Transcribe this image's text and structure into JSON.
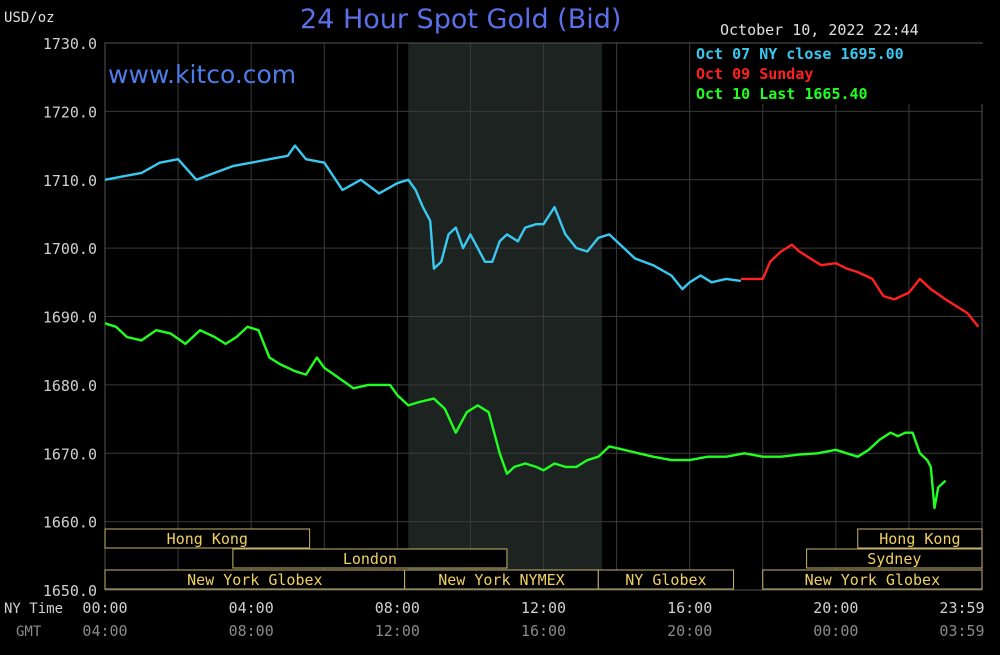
{
  "chart_data": {
    "type": "line",
    "title": "24 Hour Spot Gold (Bid)",
    "watermark": "www.kitco.com",
    "timestamp": "October 10, 2022 22:44",
    "yunit": "USD/oz",
    "ylim": [
      1650,
      1730
    ],
    "yticks": [
      "1730.0",
      "1720.0",
      "1710.0",
      "1700.0",
      "1690.0",
      "1680.0",
      "1670.0",
      "1660.0",
      "1650.0"
    ],
    "xlim": [
      0,
      24
    ],
    "xticks_ny": [
      "00:00",
      "04:00",
      "08:00",
      "12:00",
      "16:00",
      "20:00",
      "23:59"
    ],
    "xticks_gmt": [
      "04:00",
      "08:00",
      "12:00",
      "16:00",
      "20:00",
      "00:00",
      "03:59"
    ],
    "row_labels": {
      "ny": "NY Time",
      "gmt": "GMT"
    },
    "grid": true,
    "colors": {
      "background": "#000000",
      "grid": "#3a3a3a",
      "shade": "#1d2320",
      "market_border": "#c8b46e",
      "market_text": "#f0d060",
      "axis_text": "#d0d0d0",
      "gmt_text": "#8a8a8a"
    },
    "shaded_region": [
      8.3,
      13.6
    ],
    "markets": [
      {
        "label": "Hong Kong",
        "row": 0,
        "start": 0.0,
        "end": 5.6
      },
      {
        "label": "Hong Kong",
        "row": 0,
        "start": 20.6,
        "end": 24.0
      },
      {
        "label": "London",
        "row": 1,
        "start": 3.5,
        "end": 11.0
      },
      {
        "label": "Sydney",
        "row": 1,
        "start": 19.2,
        "end": 24.0
      },
      {
        "label": "New York Globex",
        "row": 2,
        "start": 0.0,
        "end": 8.2
      },
      {
        "label": "New York NYMEX",
        "row": 2,
        "start": 8.2,
        "end": 13.5
      },
      {
        "label": "NY Globex",
        "row": 2,
        "start": 13.5,
        "end": 17.2
      },
      {
        "label": "New York Globex",
        "row": 2,
        "start": 18.0,
        "end": 24.0
      }
    ],
    "legend": [
      {
        "label": "Oct 07 NY close 1695.00",
        "color": "#38c8f0"
      },
      {
        "label": "Oct 09 Sunday",
        "color": "#ff2020"
      },
      {
        "label": "Oct 10 Last 1665.40",
        "color": "#20ff20"
      }
    ],
    "series": [
      {
        "name": "Oct 07 NY close 1695.00",
        "color": "#38c8f0",
        "x": [
          0.0,
          0.5,
          1.0,
          1.5,
          2.0,
          2.5,
          3.0,
          3.5,
          4.0,
          4.5,
          5.0,
          5.2,
          5.5,
          6.0,
          6.5,
          7.0,
          7.5,
          8.0,
          8.3,
          8.5,
          8.7,
          8.9,
          9.0,
          9.2,
          9.4,
          9.6,
          9.8,
          10.0,
          10.2,
          10.4,
          10.6,
          10.8,
          11.0,
          11.3,
          11.5,
          11.8,
          12.0,
          12.3,
          12.6,
          12.9,
          13.2,
          13.5,
          13.8,
          14.0,
          14.5,
          15.0,
          15.5,
          15.8,
          16.0,
          16.3,
          16.6,
          17.0,
          17.4
        ],
        "values": [
          1710,
          1710.5,
          1711,
          1712.5,
          1713,
          1710,
          1711,
          1712,
          1712.5,
          1713,
          1713.5,
          1715,
          1713,
          1712.5,
          1708.5,
          1710,
          1708,
          1709.5,
          1710,
          1708.5,
          1706,
          1704,
          1697,
          1698,
          1702,
          1703,
          1700,
          1702,
          1700,
          1698,
          1698,
          1701,
          1702,
          1701,
          1703,
          1703.5,
          1703.5,
          1706,
          1702,
          1700,
          1699.5,
          1701.5,
          1702,
          1701,
          1698.5,
          1697.5,
          1696,
          1694,
          1695,
          1696,
          1695,
          1695.5,
          1695.2
        ]
      },
      {
        "name": "Oct 09 Sunday",
        "color": "#ff2020",
        "x": [
          17.4,
          17.8,
          18.0,
          18.2,
          18.5,
          18.8,
          19.0,
          19.3,
          19.6,
          20.0,
          20.3,
          20.6,
          21.0,
          21.3,
          21.6,
          22.0,
          22.3,
          22.6,
          23.0,
          23.3,
          23.6,
          23.9
        ],
        "values": [
          1695.5,
          1695.5,
          1695.5,
          1698,
          1699.5,
          1700.5,
          1699.5,
          1698.5,
          1697.5,
          1697.8,
          1697,
          1696.5,
          1695.5,
          1693,
          1692.5,
          1693.5,
          1695.5,
          1694,
          1692.5,
          1691.5,
          1690.5,
          1688.5
        ]
      },
      {
        "name": "Oct 10 Last 1665.40",
        "color": "#20ff20",
        "x": [
          0.0,
          0.3,
          0.6,
          1.0,
          1.4,
          1.8,
          2.2,
          2.6,
          3.0,
          3.3,
          3.6,
          3.9,
          4.2,
          4.5,
          4.8,
          5.2,
          5.5,
          5.8,
          6.0,
          6.4,
          6.8,
          7.2,
          7.6,
          7.8,
          8.0,
          8.3,
          8.6,
          9.0,
          9.3,
          9.6,
          9.9,
          10.2,
          10.5,
          10.8,
          11.0,
          11.2,
          11.5,
          11.8,
          12.0,
          12.3,
          12.6,
          12.9,
          13.2,
          13.5,
          13.8,
          14.2,
          14.6,
          15.0,
          15.5,
          16.0,
          16.5,
          17.0,
          17.5,
          18.0,
          18.5,
          19.0,
          19.5,
          20.0,
          20.3,
          20.6,
          20.9,
          21.2,
          21.5,
          21.7,
          21.9,
          22.1,
          22.3,
          22.5,
          22.6,
          22.7,
          22.8,
          23.0
        ],
        "values": [
          1689,
          1688.5,
          1687,
          1686.5,
          1688,
          1687.5,
          1686,
          1688,
          1687,
          1686,
          1687,
          1688.5,
          1688,
          1684,
          1683,
          1682,
          1681.5,
          1684,
          1682.5,
          1681,
          1679.5,
          1680,
          1680,
          1680,
          1678.5,
          1677,
          1677.5,
          1678,
          1676.5,
          1673,
          1676,
          1677,
          1676,
          1670,
          1667,
          1668,
          1668.5,
          1668,
          1667.5,
          1668.5,
          1668,
          1668,
          1669,
          1669.5,
          1671,
          1670.5,
          1670,
          1669.5,
          1669,
          1669,
          1669.5,
          1669.5,
          1670,
          1669.5,
          1669.5,
          1669.8,
          1670,
          1670.5,
          1670,
          1669.5,
          1670.5,
          1672,
          1673,
          1672.5,
          1673,
          1673,
          1670,
          1669,
          1668,
          1662,
          1665,
          1666
        ]
      }
    ]
  }
}
